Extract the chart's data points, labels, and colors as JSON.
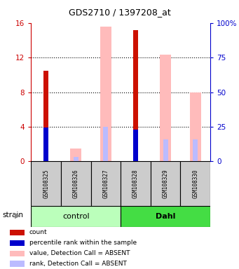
{
  "title": "GDS2710 / 1397208_at",
  "samples": [
    "GSM108325",
    "GSM108326",
    "GSM108327",
    "GSM108328",
    "GSM108329",
    "GSM108330"
  ],
  "ylim_left": [
    0,
    16
  ],
  "ylim_right": [
    0,
    100
  ],
  "yticks_left": [
    0,
    4,
    8,
    12,
    16
  ],
  "ytick_labels_right": [
    "0",
    "25",
    "50",
    "75",
    "100%"
  ],
  "count_values": [
    10.5,
    0,
    0,
    15.2,
    0,
    0
  ],
  "rank_values": [
    3.9,
    0,
    0,
    3.7,
    0,
    0
  ],
  "value_absent": [
    0,
    1.5,
    15.6,
    0,
    12.3,
    8.0
  ],
  "rank_absent": [
    0,
    0.5,
    4.0,
    0,
    2.5,
    2.5
  ],
  "color_count": "#cc1100",
  "color_rank": "#0000cc",
  "color_value_absent": "#ffbbbb",
  "color_rank_absent": "#bbbbff",
  "color_axis_left": "#cc0000",
  "color_axis_right": "#0000cc",
  "group_ctrl_color": "#bbffbb",
  "group_dahl_color": "#44dd44",
  "legend_items": [
    {
      "color": "#cc1100",
      "label": "count"
    },
    {
      "color": "#0000cc",
      "label": "percentile rank within the sample"
    },
    {
      "color": "#ffbbbb",
      "label": "value, Detection Call = ABSENT"
    },
    {
      "color": "#bbbbff",
      "label": "rank, Detection Call = ABSENT"
    }
  ]
}
